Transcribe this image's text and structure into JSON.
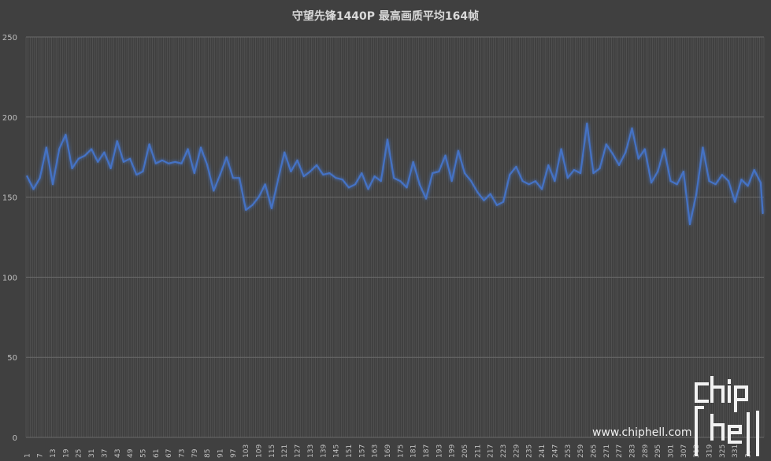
{
  "chart_data": {
    "type": "line",
    "title": "守望先锋1440P 最高画质平均164帧",
    "xlabel": "",
    "ylabel": "",
    "ylim": [
      0,
      250
    ],
    "yticks": [
      0,
      50,
      100,
      150,
      200,
      250
    ],
    "xlim": [
      1,
      344
    ],
    "xtick_labels": [
      "1",
      "7",
      "13",
      "19",
      "25",
      "31",
      "37",
      "43",
      "49",
      "55",
      "61",
      "67",
      "73",
      "79",
      "85",
      "91",
      "97",
      "103",
      "109",
      "115",
      "121",
      "127",
      "133",
      "139",
      "145",
      "151",
      "157",
      "163",
      "169",
      "175",
      "181",
      "187",
      "193",
      "199",
      "205",
      "211",
      "217",
      "223",
      "229",
      "235",
      "241",
      "247",
      "253",
      "259",
      "265",
      "271",
      "277",
      "283",
      "289",
      "295",
      "301",
      "307",
      "313",
      "319",
      "325",
      "331",
      "3:"
    ],
    "grid": true,
    "series": [
      {
        "color": "#4472c4",
        "x": [
          1,
          4,
          7,
          10,
          13,
          16,
          19,
          22,
          25,
          28,
          31,
          34,
          37,
          40,
          43,
          46,
          49,
          52,
          55,
          58,
          61,
          64,
          67,
          70,
          73,
          76,
          79,
          82,
          85,
          88,
          91,
          94,
          97,
          100,
          103,
          106,
          109,
          112,
          115,
          118,
          121,
          124,
          127,
          130,
          133,
          136,
          139,
          142,
          145,
          148,
          151,
          154,
          157,
          160,
          163,
          166,
          169,
          172,
          175,
          178,
          181,
          184,
          187,
          190,
          193,
          196,
          199,
          202,
          205,
          208,
          211,
          214,
          217,
          220,
          223,
          226,
          229,
          232,
          235,
          238,
          241,
          244,
          247,
          250,
          253,
          256,
          259,
          262,
          265,
          268,
          271,
          274,
          277,
          280,
          283,
          286,
          289,
          292,
          295,
          298,
          301,
          304,
          307,
          310,
          313,
          316,
          319,
          322,
          325,
          328,
          331,
          334,
          337,
          340,
          343,
          344
        ],
        "values": [
          163,
          155,
          162,
          181,
          158,
          180,
          189,
          168,
          174,
          176,
          180,
          172,
          178,
          168,
          185,
          172,
          174,
          164,
          166,
          183,
          171,
          173,
          171,
          172,
          171,
          180,
          165,
          181,
          170,
          154,
          164,
          175,
          162,
          162,
          142,
          145,
          150,
          158,
          143,
          161,
          178,
          166,
          173,
          163,
          166,
          170,
          164,
          165,
          162,
          161,
          156,
          158,
          165,
          155,
          163,
          160,
          186,
          162,
          160,
          156,
          172,
          158,
          149,
          165,
          166,
          176,
          160,
          179,
          165,
          160,
          153,
          148,
          152,
          145,
          147,
          164,
          169,
          160,
          158,
          160,
          155,
          170,
          160,
          180,
          162,
          167,
          165,
          196,
          165,
          168,
          183,
          177,
          170,
          178,
          193,
          174,
          180,
          159,
          166,
          180,
          160,
          158,
          166,
          133,
          152,
          181,
          160,
          158,
          164,
          160,
          147,
          161,
          157,
          167,
          159,
          140
        ]
      }
    ]
  },
  "watermark": {
    "url": "www.chiphell.com",
    "logo_text": "chiphell"
  }
}
